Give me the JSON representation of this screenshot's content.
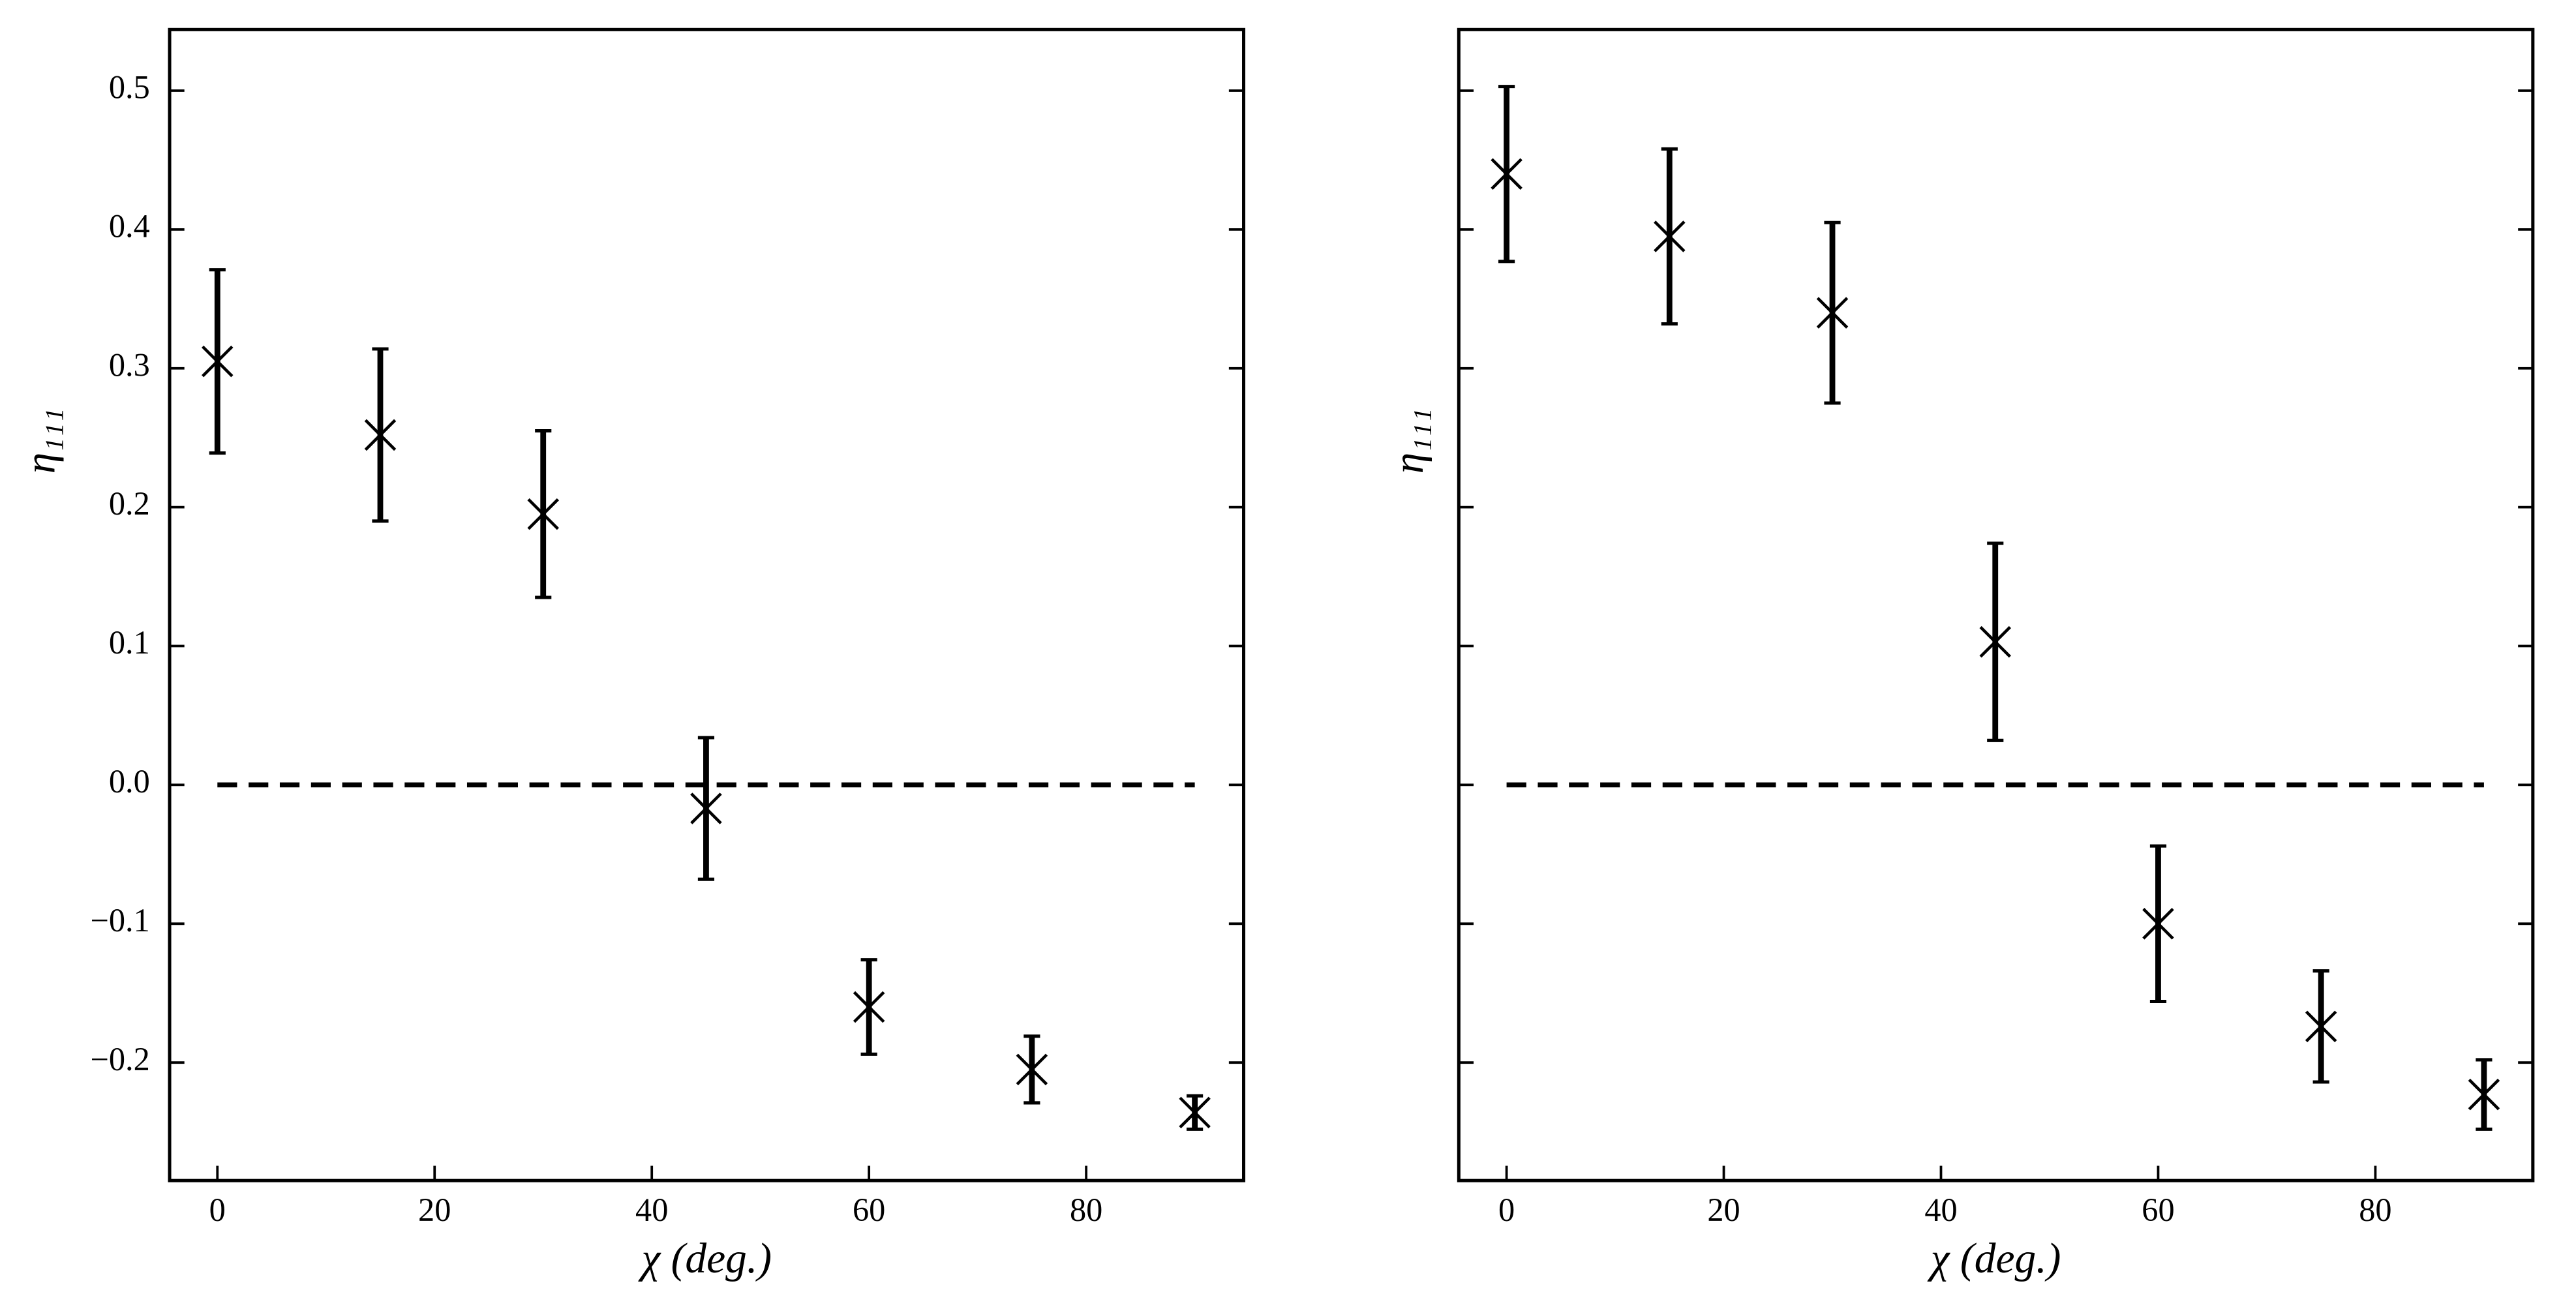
{
  "chart_data": [
    {
      "type": "scatter",
      "xlabel": "χ (deg.)",
      "ylabel": "η₁₁₁",
      "x": [
        0,
        15,
        30,
        45,
        60,
        75,
        90
      ],
      "values": [
        0.305,
        0.252,
        0.195,
        -0.017,
        -0.16,
        -0.205,
        -0.236
      ],
      "errors": [
        0.066,
        0.062,
        0.06,
        0.051,
        0.034,
        0.024,
        0.012
      ],
      "color": "#000000",
      "hline": 0,
      "xlim": [
        -4.4,
        94.5
      ],
      "ylim": [
        -0.285,
        0.544
      ],
      "xticks": [
        0,
        20,
        40,
        60,
        80
      ],
      "yticks": [
        {
          "value": -0.2,
          "label": "−0.2"
        },
        {
          "value": -0.1,
          "label": "−0.1"
        },
        {
          "value": 0,
          "label": "0.0"
        },
        0.1,
        0.2,
        0.3,
        0.4,
        0.5
      ],
      "ytick_labels": true
    },
    {
      "type": "scatter",
      "xlabel": "χ (deg.)",
      "ylabel": "η₁₁₁",
      "x": [
        0,
        15,
        30,
        45,
        60,
        75,
        90
      ],
      "values": [
        0.44,
        0.395,
        0.34,
        0.103,
        -0.1,
        -0.174,
        -0.223
      ],
      "errors": [
        0.063,
        0.063,
        0.065,
        0.071,
        0.056,
        0.04,
        0.025
      ],
      "color": "#000000",
      "hline": 0,
      "xlim": [
        -4.4,
        94.5
      ],
      "ylim": [
        -0.285,
        0.544
      ],
      "xticks": [
        0,
        20,
        40,
        60,
        80
      ],
      "yticks": [
        -0.2,
        -0.1,
        0,
        0.1,
        0.2,
        0.3,
        0.4,
        0.5
      ],
      "ytick_labels": false
    }
  ]
}
